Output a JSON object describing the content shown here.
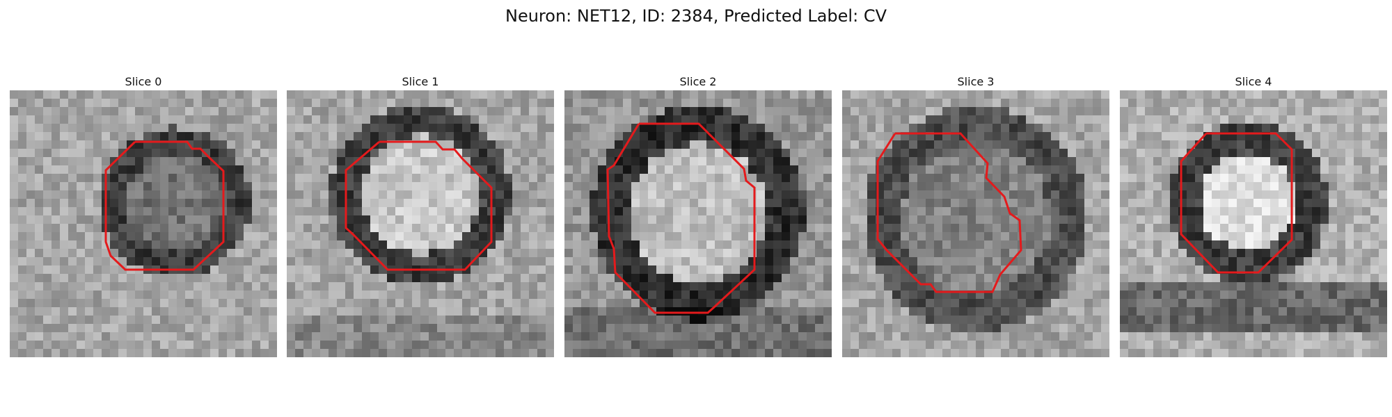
{
  "figure": {
    "title": "Neuron: NET12, ID: 2384, Predicted Label: CV"
  },
  "colors": {
    "contour": "#e41a1c",
    "background": "#ffffff"
  },
  "panels": [
    {
      "title": "Slice 0"
    },
    {
      "title": "Slice 1"
    },
    {
      "title": "Slice 2"
    },
    {
      "title": "Slice 3"
    },
    {
      "title": "Slice 4"
    }
  ]
}
